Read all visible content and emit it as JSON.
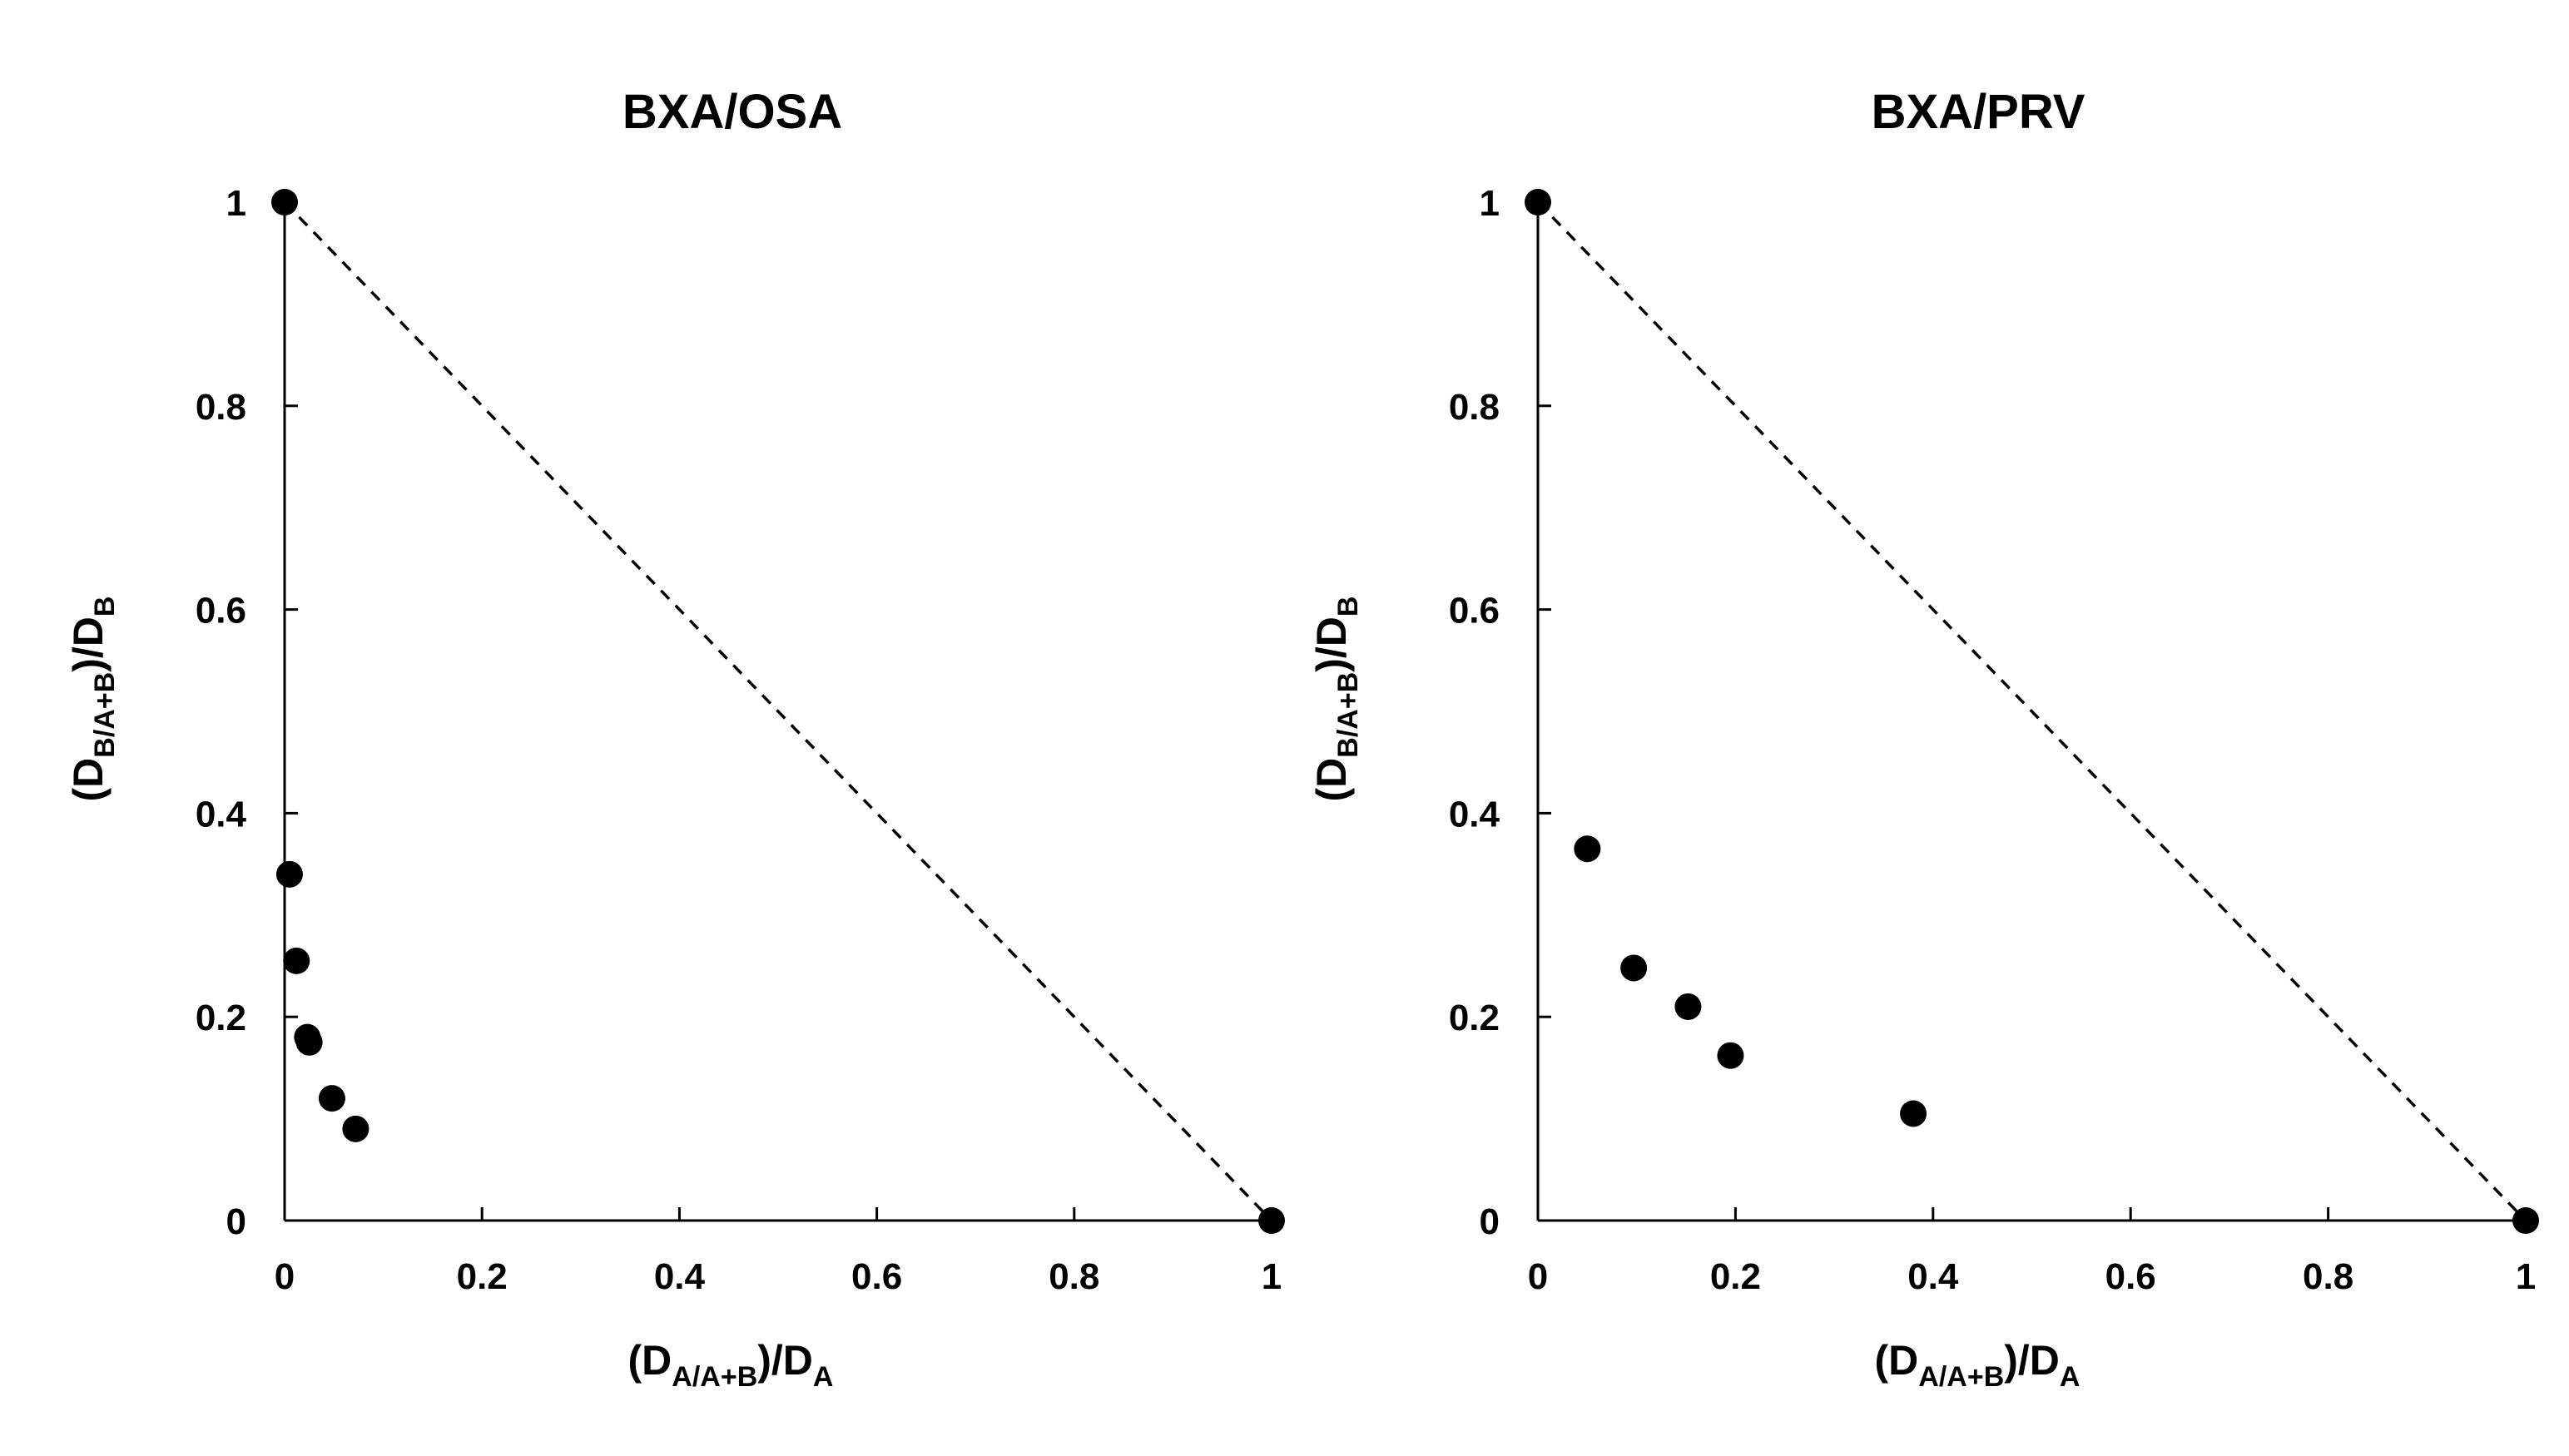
{
  "chart_data": [
    {
      "type": "scatter",
      "title": "BXA/OSA",
      "xlabel": {
        "prefix": "(D",
        "sub": "A/A+B",
        "suffix": ")/D",
        "sub2": "A"
      },
      "ylabel": {
        "prefix": "(D",
        "sub": "B/A+B",
        "suffix": ")/D",
        "sub2": "B"
      },
      "xlim": [
        0,
        1
      ],
      "ylim": [
        0,
        1
      ],
      "x_ticks": [
        "0",
        "0.2",
        "0.4",
        "0.6",
        "0.8",
        "1"
      ],
      "y_ticks": [
        "0",
        "0.2",
        "0.4",
        "0.6",
        "0.8",
        "1"
      ],
      "grid": false,
      "reference_line": {
        "style": "dashed",
        "from": [
          0,
          1
        ],
        "to": [
          1,
          0
        ]
      },
      "points": [
        {
          "x": 0.0,
          "y": 1.0
        },
        {
          "x": 1.0,
          "y": 0.0
        },
        {
          "x": 0.005,
          "y": 0.34
        },
        {
          "x": 0.012,
          "y": 0.255
        },
        {
          "x": 0.023,
          "y": 0.18
        },
        {
          "x": 0.025,
          "y": 0.175
        },
        {
          "x": 0.048,
          "y": 0.12
        },
        {
          "x": 0.072,
          "y": 0.09
        }
      ]
    },
    {
      "type": "scatter",
      "title": "BXA/PRV",
      "xlabel": {
        "prefix": "(D",
        "sub": "A/A+B",
        "suffix": ")/D",
        "sub2": "A"
      },
      "ylabel": {
        "prefix": "(D",
        "sub": "B/A+B",
        "suffix": ")/D",
        "sub2": "B"
      },
      "xlim": [
        0,
        1
      ],
      "ylim": [
        0,
        1
      ],
      "x_ticks": [
        "0",
        "0.2",
        "0.4",
        "0.6",
        "0.8",
        "1"
      ],
      "y_ticks": [
        "0",
        "0.2",
        "0.4",
        "0.6",
        "0.8",
        "1"
      ],
      "grid": false,
      "reference_line": {
        "style": "dashed",
        "from": [
          0,
          1
        ],
        "to": [
          1,
          0
        ]
      },
      "points": [
        {
          "x": 0.0,
          "y": 1.0
        },
        {
          "x": 1.0,
          "y": 0.0
        },
        {
          "x": 0.05,
          "y": 0.365
        },
        {
          "x": 0.097,
          "y": 0.248
        },
        {
          "x": 0.152,
          "y": 0.21
        },
        {
          "x": 0.195,
          "y": 0.162
        },
        {
          "x": 0.38,
          "y": 0.105
        }
      ]
    }
  ]
}
